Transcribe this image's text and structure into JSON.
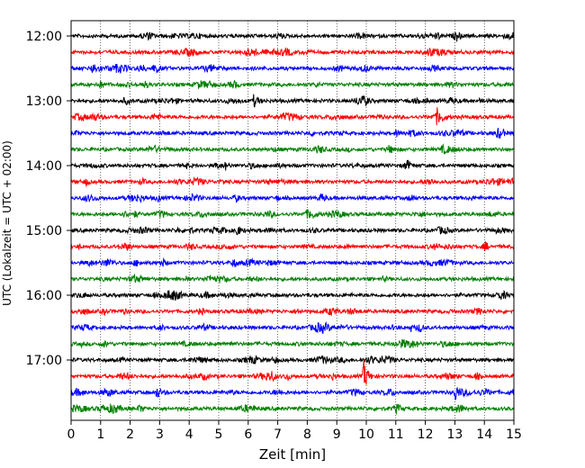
{
  "chart_data": {
    "type": "line",
    "title": "",
    "xlabel": "Zeit  [min]",
    "ylabel": "UTC (Lokalzeit = UTC + 02:00)",
    "xlim": [
      0,
      15
    ],
    "x_ticks": [
      "0",
      "1",
      "2",
      "3",
      "4",
      "5",
      "6",
      "7",
      "8",
      "9",
      "10",
      "11",
      "12",
      "13",
      "14",
      "15"
    ],
    "y_tick_labels": [
      "12:00",
      "13:00",
      "14:00",
      "15:00",
      "16:00",
      "17:00"
    ],
    "grid": "vertical dotted at each minute",
    "trace_interval_minutes": 15,
    "trace_colors": [
      "#000000",
      "#ff0000",
      "#0000ff",
      "#008000"
    ],
    "traces": [
      {
        "start": "12:00",
        "color": "#000000"
      },
      {
        "start": "12:15",
        "color": "#ff0000"
      },
      {
        "start": "12:30",
        "color": "#0000ff"
      },
      {
        "start": "12:45",
        "color": "#008000"
      },
      {
        "start": "13:00",
        "color": "#000000"
      },
      {
        "start": "13:15",
        "color": "#ff0000"
      },
      {
        "start": "13:30",
        "color": "#0000ff"
      },
      {
        "start": "13:45",
        "color": "#008000"
      },
      {
        "start": "14:00",
        "color": "#000000"
      },
      {
        "start": "14:15",
        "color": "#ff0000"
      },
      {
        "start": "14:30",
        "color": "#0000ff"
      },
      {
        "start": "14:45",
        "color": "#008000"
      },
      {
        "start": "15:00",
        "color": "#000000"
      },
      {
        "start": "15:15",
        "color": "#ff0000"
      },
      {
        "start": "15:30",
        "color": "#0000ff"
      },
      {
        "start": "15:45",
        "color": "#008000"
      },
      {
        "start": "16:00",
        "color": "#000000"
      },
      {
        "start": "16:15",
        "color": "#ff0000"
      },
      {
        "start": "16:30",
        "color": "#0000ff"
      },
      {
        "start": "16:45",
        "color": "#008000"
      },
      {
        "start": "17:00",
        "color": "#000000"
      },
      {
        "start": "17:15",
        "color": "#ff0000"
      },
      {
        "start": "17:30",
        "color": "#0000ff"
      },
      {
        "start": "17:45",
        "color": "#008000"
      }
    ],
    "events": [
      {
        "trace_start": "17:15",
        "minute": 9.9,
        "amplitude": "large"
      },
      {
        "trace_start": "17:30",
        "minute": 13.0,
        "amplitude": "medium"
      },
      {
        "trace_start": "17:30",
        "minute": 2.9,
        "amplitude": "small"
      },
      {
        "trace_start": "15:00",
        "minute": 5.6,
        "amplitude": "small"
      },
      {
        "trace_start": "13:00",
        "minute": 6.2,
        "amplitude": "small"
      },
      {
        "trace_start": "12:30",
        "minute": 0.7,
        "amplitude": "small"
      },
      {
        "trace_start": "13:15",
        "minute": 12.4,
        "amplitude": "small"
      }
    ]
  }
}
